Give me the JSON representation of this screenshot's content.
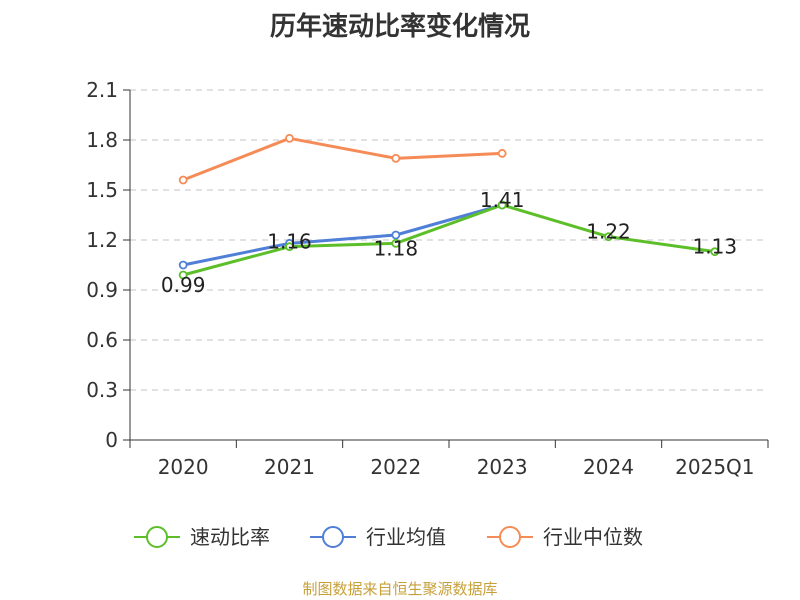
{
  "chart_data": {
    "type": "line",
    "title": "历年速动比率变化情况",
    "categories": [
      "2020",
      "2021",
      "2022",
      "2023",
      "2024",
      "2025Q1"
    ],
    "y_ticks": [
      "0",
      "0.3",
      "0.6",
      "0.9",
      "1.2",
      "1.5",
      "1.8",
      "2.1"
    ],
    "ylim": [
      0,
      2.1
    ],
    "grid": "horizontal-dashed",
    "legend_position": "bottom",
    "series": [
      {
        "name": "速动比率",
        "color": "#5cbf2a",
        "values": [
          0.99,
          1.16,
          1.18,
          1.41,
          1.22,
          1.13
        ],
        "labels": [
          "0.99",
          "1.16",
          "1.18",
          "1.41",
          "1.22",
          "1.13"
        ]
      },
      {
        "name": "行业均值",
        "color": "#4f7fd6",
        "values": [
          1.05,
          1.18,
          1.23,
          1.41,
          null,
          null
        ]
      },
      {
        "name": "行业中位数",
        "color": "#f58c57",
        "values": [
          1.56,
          1.81,
          1.69,
          1.72,
          null,
          null
        ]
      }
    ]
  },
  "source_text": "制图数据来自恒生聚源数据库"
}
